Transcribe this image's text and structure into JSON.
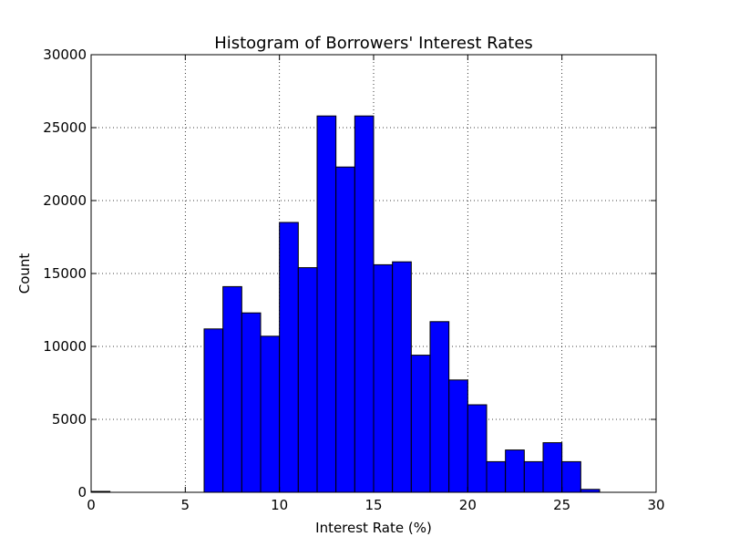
{
  "chart_data": {
    "type": "bar",
    "title": "Histogram of Borrowers' Interest Rates",
    "xlabel": "Interest Rate (%)",
    "ylabel": "Count",
    "xlim": [
      0,
      30
    ],
    "ylim": [
      0,
      30000
    ],
    "x_ticks": [
      0,
      5,
      10,
      15,
      20,
      25,
      30
    ],
    "y_ticks": [
      0,
      5000,
      10000,
      15000,
      20000,
      25000,
      30000
    ],
    "grid": true,
    "bar_color": "#0000ff",
    "bins": [
      {
        "start": 0,
        "end": 1,
        "count": 30
      },
      {
        "start": 1,
        "end": 2,
        "count": 0
      },
      {
        "start": 2,
        "end": 3,
        "count": 0
      },
      {
        "start": 3,
        "end": 4,
        "count": 0
      },
      {
        "start": 4,
        "end": 5,
        "count": 0
      },
      {
        "start": 5,
        "end": 6,
        "count": 0
      },
      {
        "start": 6,
        "end": 7,
        "count": 11200
      },
      {
        "start": 7,
        "end": 8,
        "count": 14100
      },
      {
        "start": 8,
        "end": 9,
        "count": 12300
      },
      {
        "start": 9,
        "end": 10,
        "count": 10700
      },
      {
        "start": 10,
        "end": 11,
        "count": 18500
      },
      {
        "start": 11,
        "end": 12,
        "count": 15400
      },
      {
        "start": 12,
        "end": 13,
        "count": 25800
      },
      {
        "start": 13,
        "end": 14,
        "count": 22300
      },
      {
        "start": 14,
        "end": 15,
        "count": 25800
      },
      {
        "start": 15,
        "end": 16,
        "count": 15600
      },
      {
        "start": 16,
        "end": 17,
        "count": 15800
      },
      {
        "start": 17,
        "end": 18,
        "count": 9400
      },
      {
        "start": 18,
        "end": 19,
        "count": 11700
      },
      {
        "start": 19,
        "end": 20,
        "count": 7700
      },
      {
        "start": 20,
        "end": 21,
        "count": 6000
      },
      {
        "start": 21,
        "end": 22,
        "count": 2100
      },
      {
        "start": 22,
        "end": 23,
        "count": 2900
      },
      {
        "start": 23,
        "end": 24,
        "count": 2100
      },
      {
        "start": 24,
        "end": 25,
        "count": 3400
      },
      {
        "start": 25,
        "end": 26,
        "count": 2100
      },
      {
        "start": 26,
        "end": 27,
        "count": 200
      },
      {
        "start": 27,
        "end": 28,
        "count": 0
      },
      {
        "start": 28,
        "end": 29,
        "count": 0
      },
      {
        "start": 29,
        "end": 30,
        "count": 0
      }
    ]
  }
}
